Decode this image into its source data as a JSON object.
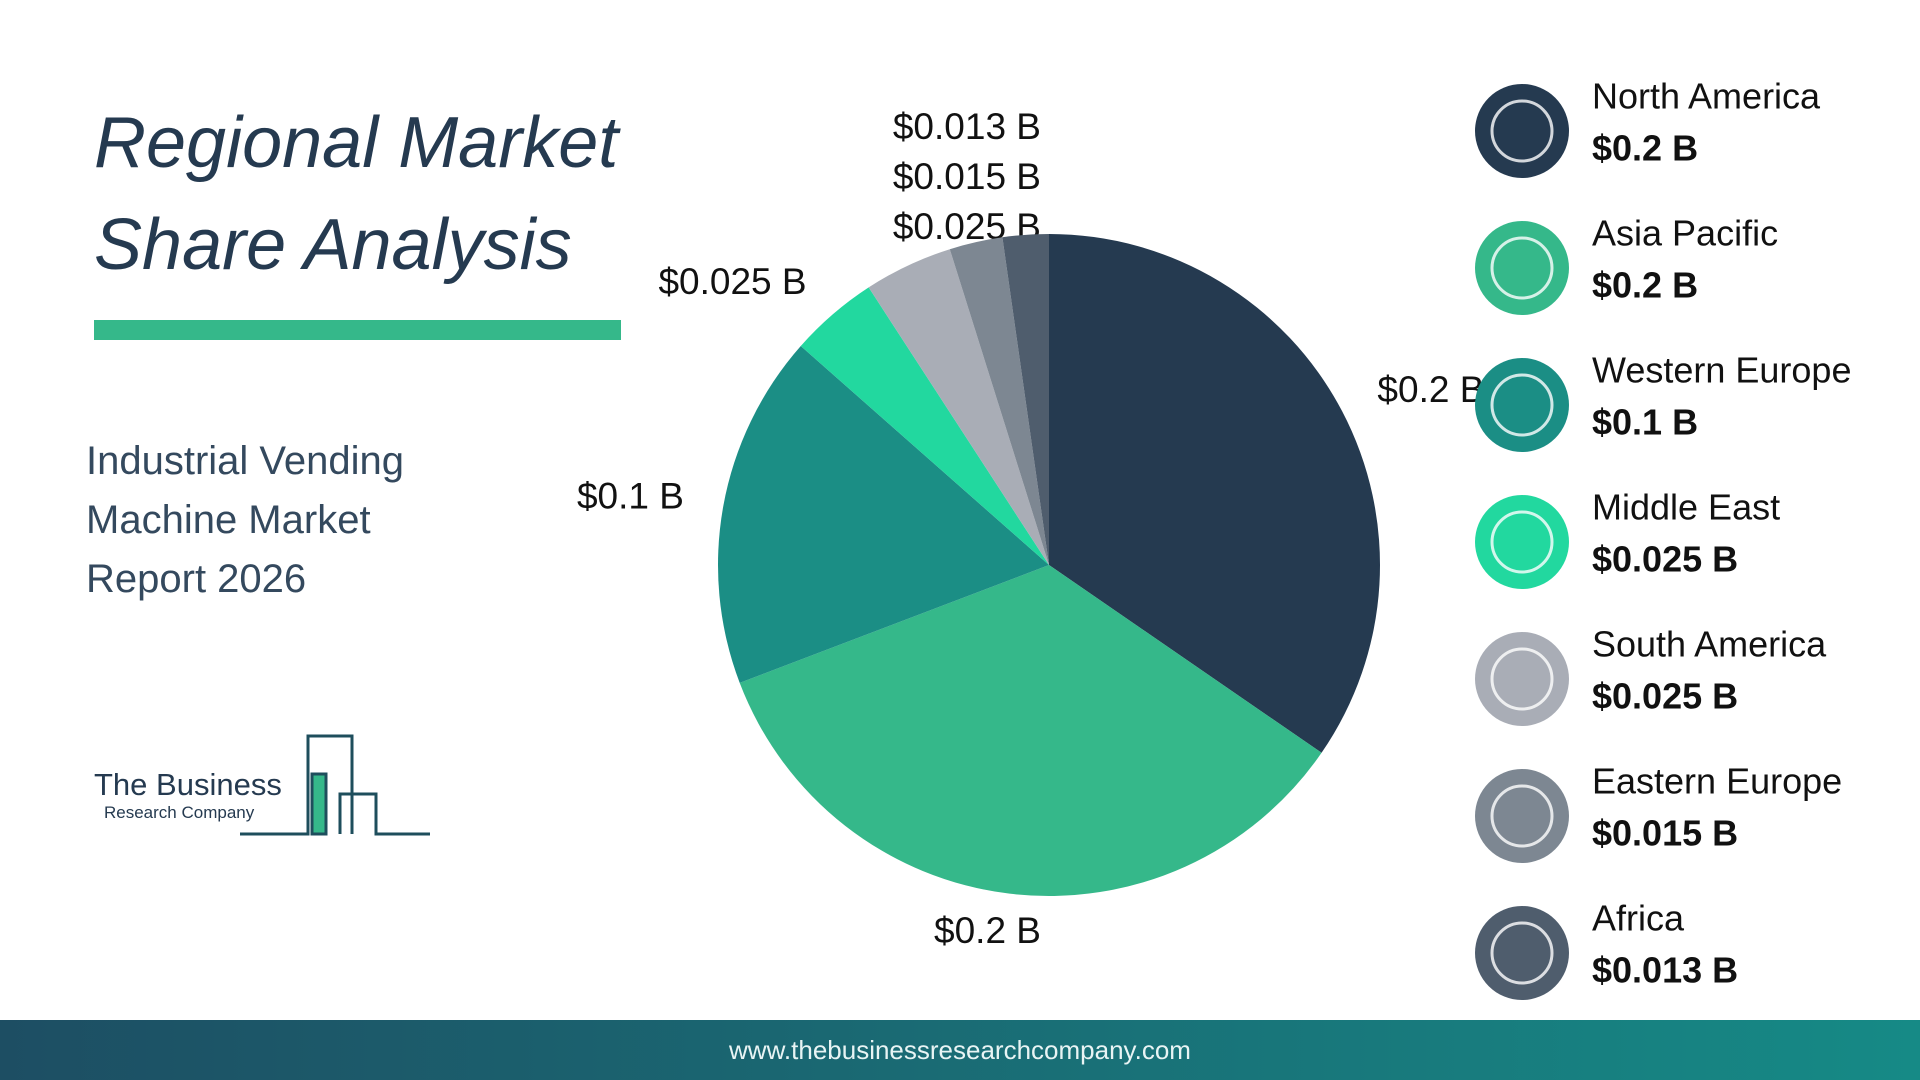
{
  "title": "Regional Market Share Analysis",
  "subtitle": "Industrial Vending Machine Market Report 2026",
  "logo": {
    "name": "The Business",
    "tagline": "Research Company"
  },
  "footer": "www.thebusinessresearchcompany.com",
  "chart_data": {
    "type": "pie",
    "categories": [
      "North America",
      "Asia Pacific",
      "Western Europe",
      "Middle East",
      "South America",
      "Eastern Europe",
      "Africa"
    ],
    "values": [
      0.2,
      0.2,
      0.1,
      0.025,
      0.025,
      0.015,
      0.013
    ],
    "value_labels": [
      "$0.2 B",
      "$0.2 B",
      "$0.1 B",
      "$0.025 B",
      "$0.025 B",
      "$0.015 B",
      "$0.013 B"
    ],
    "colors": [
      "#253a50",
      "#35b88a",
      "#1b8e85",
      "#22d89f",
      "#a9adb6",
      "#7d8792",
      "#4f5d6d"
    ]
  }
}
